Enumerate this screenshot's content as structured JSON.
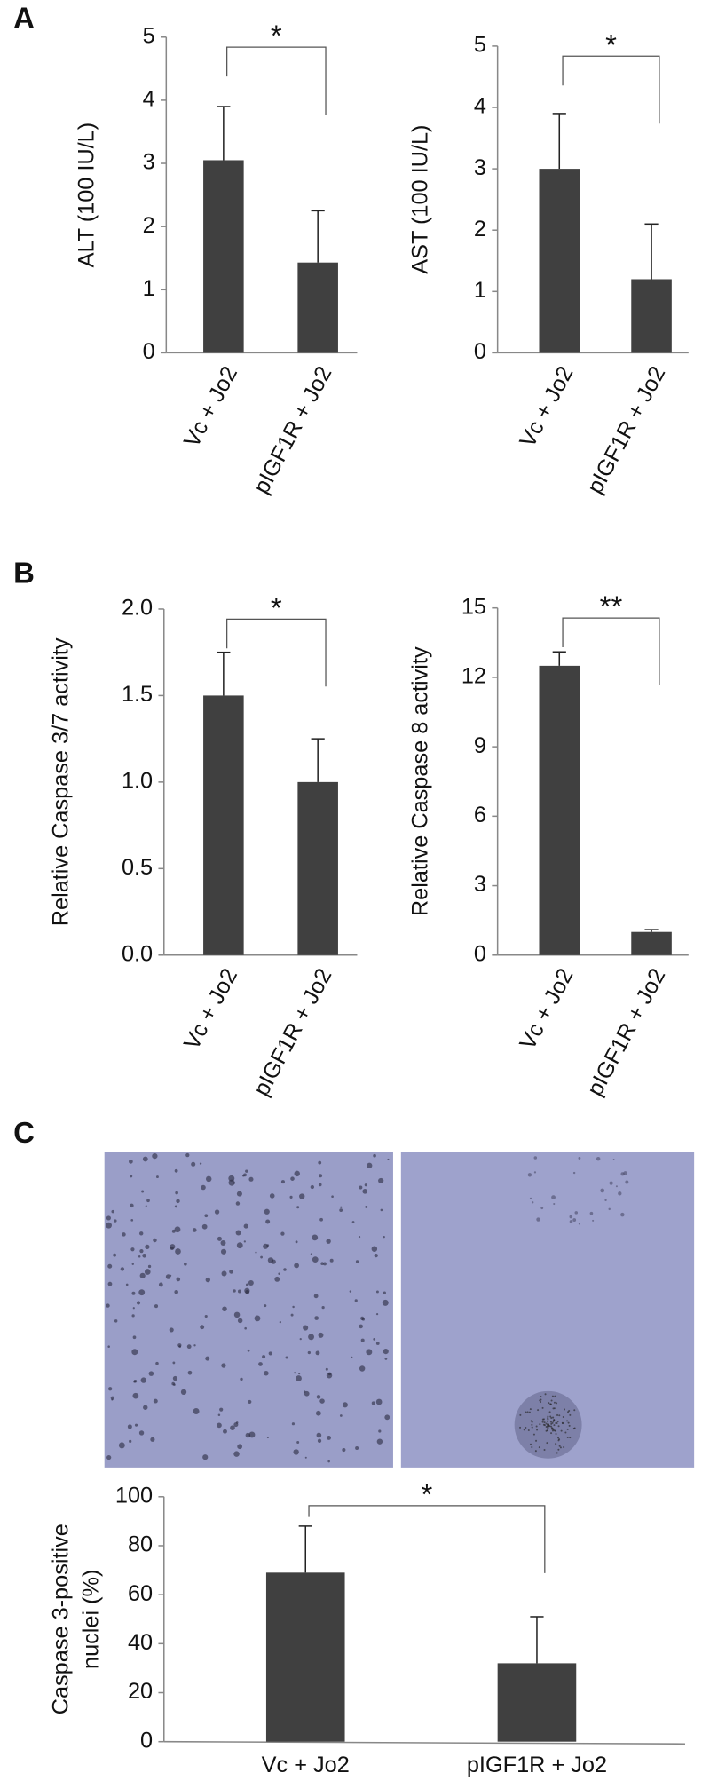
{
  "chart_data": [
    {
      "type": "bar",
      "panel_label": "A",
      "ylabel": "ALT (100 IU/L)",
      "categories": [
        "Vc + Jo2",
        "pIGF1R + Jo2"
      ],
      "values": [
        3.05,
        1.43
      ],
      "errors": [
        0.85,
        0.82
      ],
      "color": "#404040",
      "ylim": [
        0,
        5
      ],
      "yticks": [
        0,
        1,
        2,
        3,
        4,
        5
      ],
      "annotation": "*"
    },
    {
      "type": "bar",
      "ylabel": "AST (100 IU/L)",
      "categories": [
        "Vc + Jo2",
        "pIGF1R + Jo2"
      ],
      "values": [
        3.0,
        1.2
      ],
      "errors": [
        0.9,
        0.9
      ],
      "color": "#404040",
      "ylim": [
        0,
        5
      ],
      "yticks": [
        0,
        1,
        2,
        3,
        4,
        5
      ],
      "annotation": "*"
    },
    {
      "type": "bar",
      "panel_label": "B",
      "ylabel": "Relative Caspase 3/7 activity",
      "categories": [
        "Vc + Jo2",
        "pIGF1R + Jo2"
      ],
      "values": [
        1.5,
        1.0
      ],
      "errors": [
        0.25,
        0.25
      ],
      "color": "#404040",
      "ylim": [
        0,
        2
      ],
      "yticks": [
        {
          "value": 0,
          "label": "0.0"
        },
        0.5,
        {
          "value": 1,
          "label": "1.0"
        },
        1.5,
        {
          "value": 2,
          "label": "2.0"
        }
      ],
      "annotation": "*"
    },
    {
      "type": "bar",
      "ylabel": "Relative Caspase 8 activity",
      "categories": [
        "Vc + Jo2",
        "pIGF1R + Jo2"
      ],
      "values": [
        12.5,
        1.0
      ],
      "errors": [
        0.6,
        0.1
      ],
      "color": "#404040",
      "ylim": [
        0,
        15
      ],
      "yticks": [
        0,
        3,
        6,
        9,
        12,
        15
      ],
      "annotation": "**"
    },
    {
      "type": "bar",
      "panel_label": "C",
      "ylabel": [
        "Caspase 3-positive",
        "nuclei (%)"
      ],
      "categories": [
        "Vc + Jo2",
        "pIGF1R + Jo2"
      ],
      "values": [
        69,
        32
      ],
      "errors": [
        19,
        19
      ],
      "color": "#404040",
      "ylim": [
        0,
        100
      ],
      "yticks": [
        0,
        20,
        40,
        60,
        80,
        100
      ],
      "annotation": "*"
    }
  ]
}
